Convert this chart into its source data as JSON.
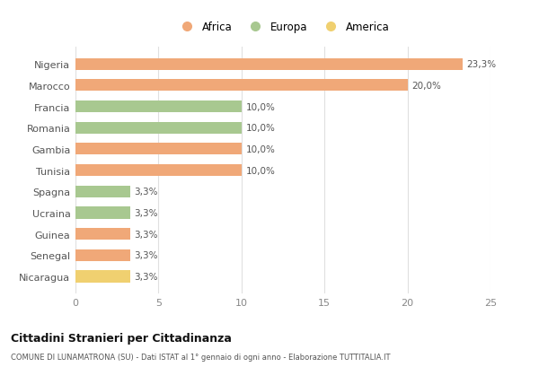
{
  "countries": [
    "Nigeria",
    "Marocco",
    "Francia",
    "Romania",
    "Gambia",
    "Tunisia",
    "Spagna",
    "Ucraina",
    "Guinea",
    "Senegal",
    "Nicaragua"
  ],
  "values": [
    23.3,
    20.0,
    10.0,
    10.0,
    10.0,
    10.0,
    3.3,
    3.3,
    3.3,
    3.3,
    3.3
  ],
  "labels": [
    "23,3%",
    "20,0%",
    "10,0%",
    "10,0%",
    "10,0%",
    "10,0%",
    "3,3%",
    "3,3%",
    "3,3%",
    "3,3%",
    "3,3%"
  ],
  "colors": [
    "#F0A878",
    "#F0A878",
    "#A8C890",
    "#A8C890",
    "#F0A878",
    "#F0A878",
    "#A8C890",
    "#A8C890",
    "#F0A878",
    "#F0A878",
    "#F0D070"
  ],
  "legend_labels": [
    "Africa",
    "Europa",
    "America"
  ],
  "legend_colors": [
    "#F0A878",
    "#A8C890",
    "#F0D070"
  ],
  "title": "Cittadini Stranieri per Cittadinanza",
  "subtitle": "COMUNE DI LUNAMATRONA (SU) - Dati ISTAT al 1° gennaio di ogni anno - Elaborazione TUTTITALIA.IT",
  "xlim": [
    0,
    25
  ],
  "xticks": [
    0,
    5,
    10,
    15,
    20,
    25
  ],
  "background_color": "#ffffff",
  "grid_color": "#e0e0e0"
}
